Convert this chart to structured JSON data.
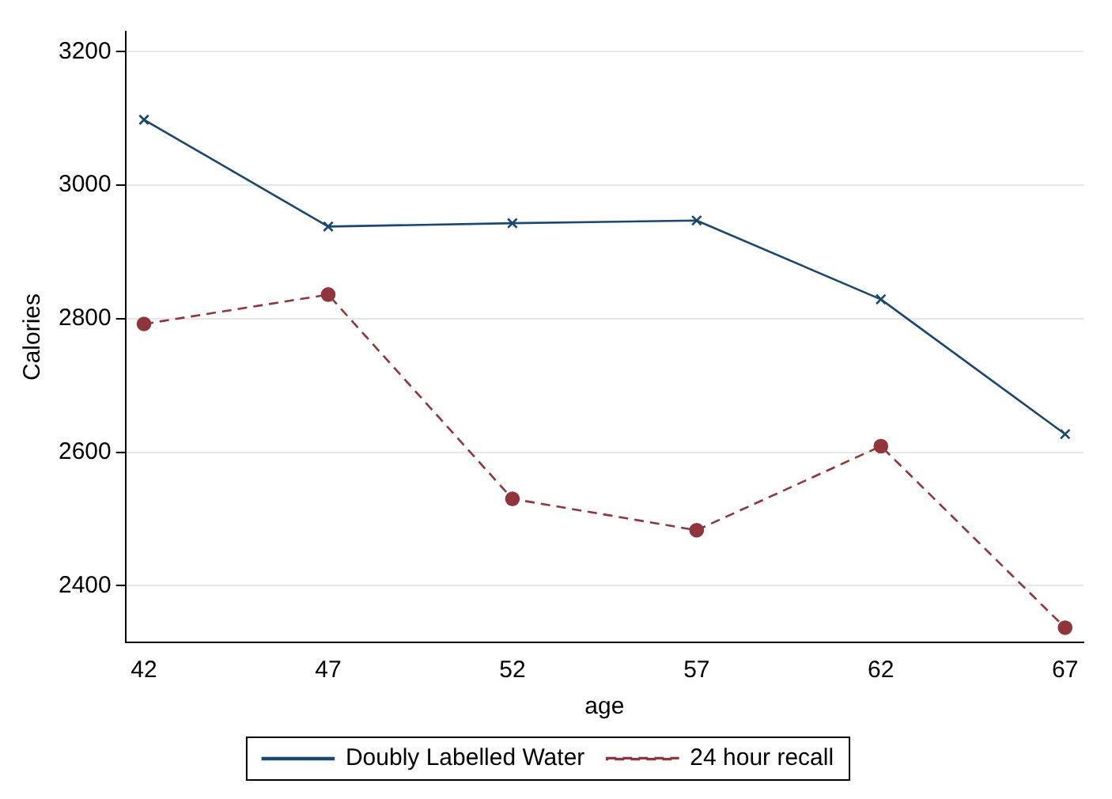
{
  "chart_data": {
    "type": "line",
    "xlabel": "age",
    "ylabel": "Calories",
    "x": [
      42,
      47,
      52,
      57,
      62,
      67
    ],
    "series": [
      {
        "name": "Doubly Labelled Water",
        "color": "#1a476f",
        "values": [
          3098,
          2938,
          2943,
          2947,
          2829,
          2627
        ],
        "marker": "cross",
        "line_style": "solid"
      },
      {
        "name": "24 hour recall",
        "color": "#90353b",
        "values": [
          2792,
          2836,
          2530,
          2483,
          2609,
          2337
        ],
        "marker": "circle",
        "line_style": "dashed"
      }
    ],
    "xlim": [
      41.5,
      67.5
    ],
    "xticks": [
      42,
      47,
      52,
      57,
      62,
      67
    ],
    "ylim": [
      2315,
      3230
    ],
    "yticks": [
      2400,
      2600,
      2800,
      3000,
      3200
    ],
    "grid": "y",
    "legend": "bottom"
  }
}
